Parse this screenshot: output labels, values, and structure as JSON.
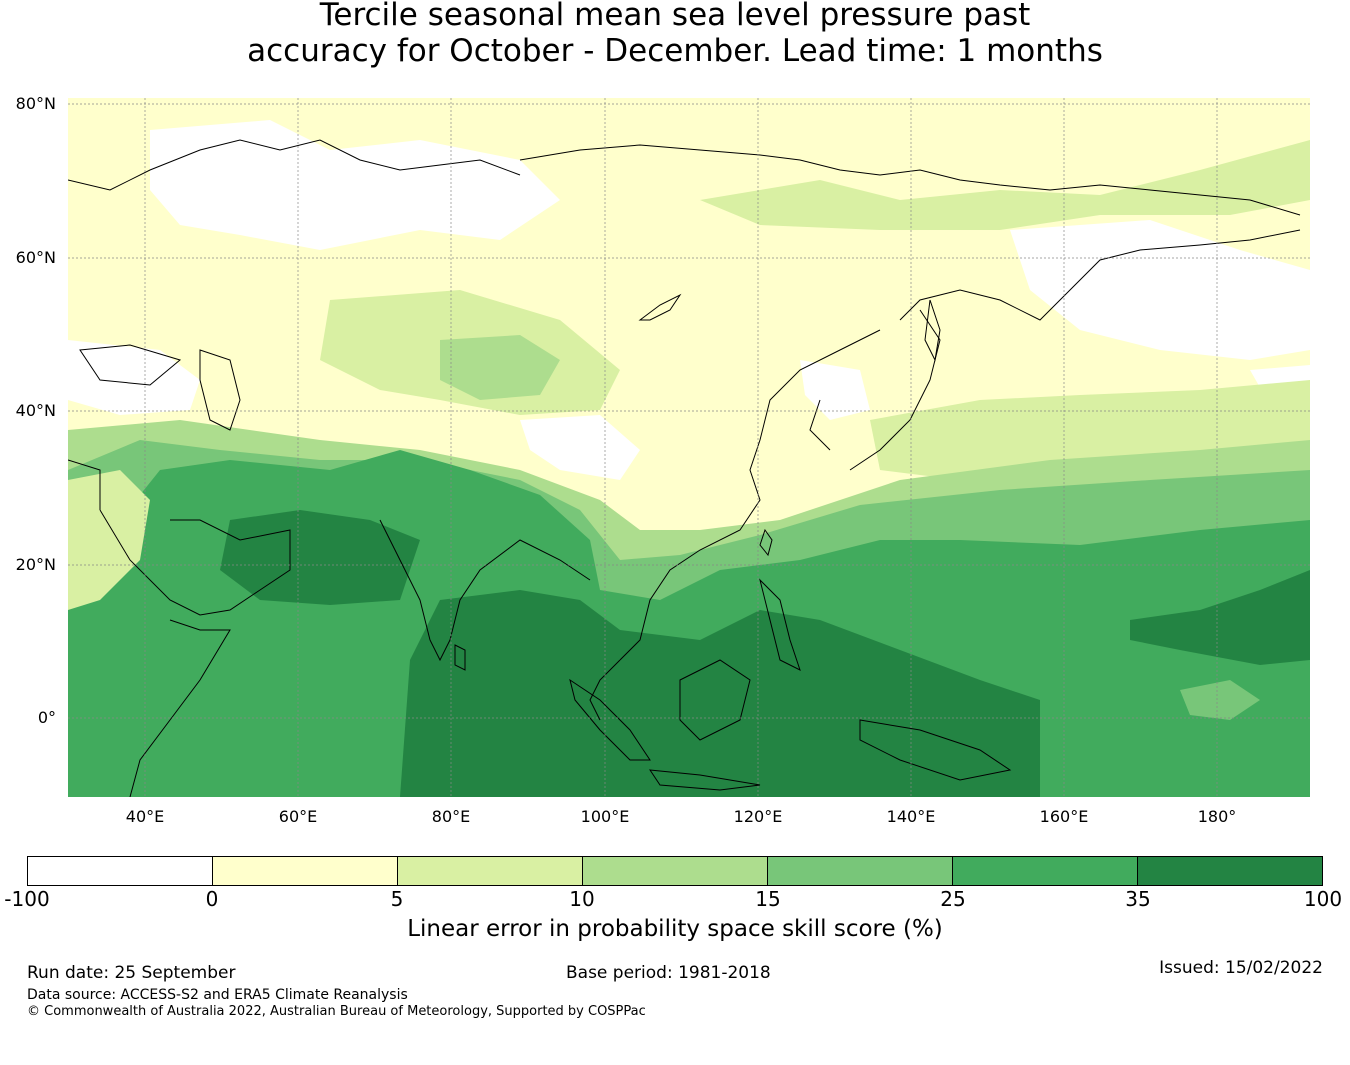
{
  "title": {
    "line1": "Tercile seasonal mean sea level pressure past",
    "line2": "accuracy for October - December. Lead time: 1 months"
  },
  "map": {
    "lat_labels": [
      "80°N",
      "60°N",
      "40°N",
      "20°N",
      "0°"
    ],
    "lon_labels": [
      "40°E",
      "60°E",
      "80°E",
      "100°E",
      "120°E",
      "140°E",
      "160°E",
      "180°"
    ],
    "extent": {
      "lon_min": 30,
      "lon_max": 192,
      "lat_min": -10,
      "lat_max": 80
    }
  },
  "colorbar": {
    "ticks": [
      "-100",
      "0",
      "5",
      "10",
      "15",
      "25",
      "35",
      "100"
    ],
    "colors": [
      "#ffffff",
      "#ffffcc",
      "#d9f0a3",
      "#addd8e",
      "#78c679",
      "#41ab5d",
      "#238443"
    ],
    "label": "Linear error in probability space skill score (%)"
  },
  "footer": {
    "run_date": "Run date: 25 September",
    "base_period": "Base period: 1981-2018",
    "issued": "Issued: 15/02/2022",
    "data_source": "Data source: ACCESS-S2 and ERA5 Climate Reanalysis",
    "copyright": "© Commonwealth of Australia 2022, Australian Bureau of Meteorology, Supported by COSPPac"
  }
}
